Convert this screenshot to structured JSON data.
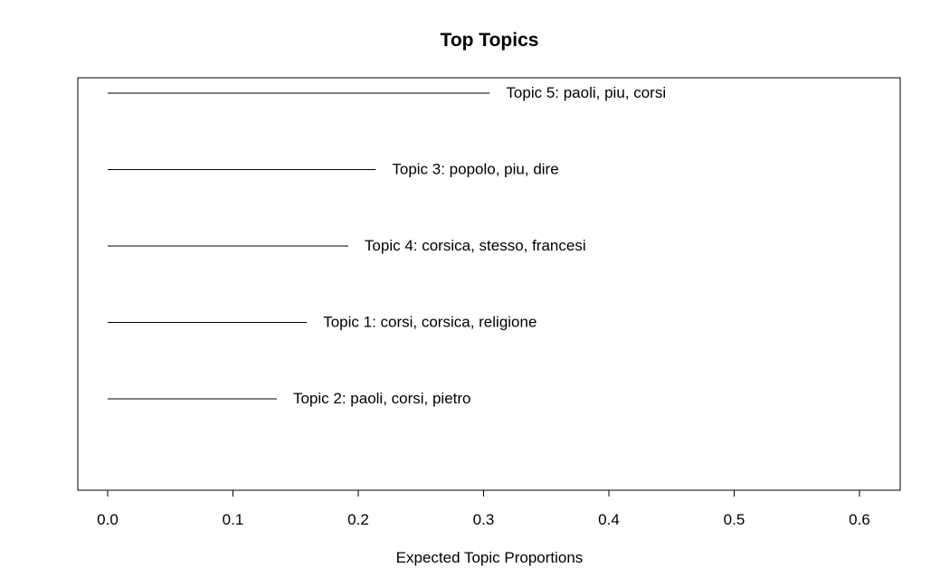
{
  "chart_data": {
    "type": "bar",
    "orientation": "horizontal",
    "title": "Top Topics",
    "xlabel": "Expected Topic Proportions",
    "ylabel": "",
    "xlim": [
      0.0,
      0.6
    ],
    "xticks": [
      0.0,
      0.1,
      0.2,
      0.3,
      0.4,
      0.5,
      0.6
    ],
    "xtick_labels": [
      "0.0",
      "0.1",
      "0.2",
      "0.3",
      "0.4",
      "0.5",
      "0.6"
    ],
    "grid": false,
    "color": "#000000",
    "categories": [
      "Topic 5: paoli, piu, corsi",
      "Topic 3: popolo, piu, dire",
      "Topic 4: corsica, stesso, francesi",
      "Topic 1: corsi, corsica, religione",
      "Topic 2: paoli, corsi, pietro"
    ],
    "values": [
      0.305,
      0.214,
      0.192,
      0.159,
      0.135
    ]
  }
}
